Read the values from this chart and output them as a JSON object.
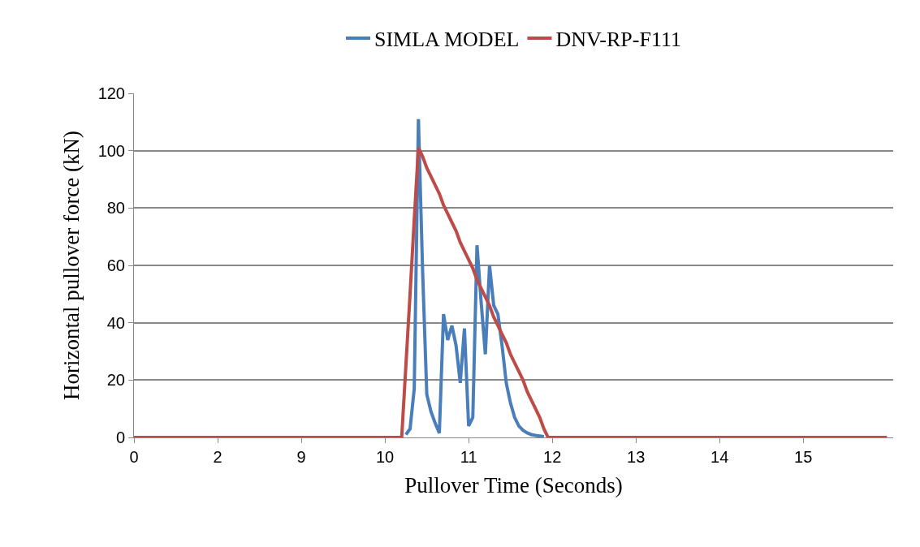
{
  "chart_data": {
    "type": "line",
    "xlabel": "Pullover Time (Seconds)",
    "ylabel": "Horizontal pullover force (kN)",
    "categories": [
      "0",
      null,
      null,
      null,
      null,
      null,
      null,
      null,
      null,
      null,
      null,
      null,
      null,
      null,
      null,
      null,
      null,
      null,
      null,
      null,
      "2",
      null,
      null,
      null,
      null,
      null,
      null,
      null,
      null,
      null,
      null,
      null,
      null,
      null,
      null,
      null,
      null,
      null,
      null,
      null,
      "9",
      null,
      null,
      null,
      null,
      null,
      null,
      null,
      null,
      null,
      null,
      null,
      null,
      null,
      null,
      null,
      null,
      null,
      null,
      null,
      "10",
      null,
      null,
      null,
      null,
      null,
      null,
      null,
      null,
      null,
      null,
      null,
      null,
      null,
      null,
      null,
      null,
      null,
      null,
      null,
      "11",
      null,
      null,
      null,
      null,
      null,
      null,
      null,
      null,
      null,
      null,
      null,
      null,
      null,
      null,
      null,
      null,
      null,
      null,
      null,
      "12",
      null,
      null,
      null,
      null,
      null,
      null,
      null,
      null,
      null,
      null,
      null,
      null,
      null,
      null,
      null,
      null,
      null,
      null,
      null,
      "13",
      null,
      null,
      null,
      null,
      null,
      null,
      null,
      null,
      null,
      null,
      null,
      null,
      null,
      null,
      null,
      null,
      null,
      null,
      null,
      "14",
      null,
      null,
      null,
      null,
      null,
      null,
      null,
      null,
      null,
      null,
      null,
      null,
      null,
      null,
      null,
      null,
      null,
      null,
      null,
      "15",
      null,
      null,
      null,
      null,
      null,
      null,
      null,
      null,
      null,
      null,
      null,
      null,
      null,
      null,
      null,
      null,
      null,
      null,
      null,
      null
    ],
    "series": [
      {
        "name": "SIMLA MODEL",
        "color": "#4a7ebb",
        "values": [
          null,
          null,
          null,
          null,
          null,
          null,
          null,
          null,
          null,
          null,
          null,
          null,
          null,
          null,
          null,
          null,
          null,
          null,
          null,
          null,
          null,
          null,
          null,
          null,
          null,
          null,
          null,
          null,
          null,
          null,
          null,
          null,
          null,
          null,
          null,
          null,
          null,
          null,
          null,
          null,
          null,
          null,
          null,
          null,
          null,
          null,
          null,
          null,
          null,
          null,
          null,
          null,
          null,
          null,
          null,
          null,
          null,
          null,
          null,
          null,
          null,
          null,
          null,
          null,
          null,
          1,
          3,
          17,
          111,
          58,
          15,
          9,
          5,
          1.5,
          43,
          34,
          39,
          32,
          19,
          38,
          4,
          7,
          67,
          47,
          29,
          60,
          46,
          43,
          32,
          19,
          12,
          7,
          4,
          2.5,
          1.6,
          1,
          0.7,
          0.5,
          0.3,
          null,
          null,
          null,
          null,
          null,
          null,
          null,
          null,
          null,
          null,
          null,
          null,
          null,
          null,
          null,
          null,
          null,
          null,
          null,
          null,
          null,
          null,
          null,
          null,
          null,
          null,
          null,
          null,
          null,
          null,
          null,
          null,
          null,
          null,
          null,
          null,
          null,
          null,
          null,
          null,
          null,
          null,
          null,
          null,
          null,
          null,
          null,
          null,
          null,
          null,
          null,
          null,
          null,
          null,
          null,
          null,
          null,
          null,
          null,
          null,
          null,
          null,
          null,
          null,
          null,
          null,
          null,
          null,
          null,
          null,
          null,
          null,
          null,
          null,
          null,
          null,
          null,
          null,
          null,
          null,
          null,
          null
        ]
      },
      {
        "name": "DNV-RP-F111",
        "color": "#be4b48",
        "values": [
          0,
          0,
          0,
          0,
          0,
          0,
          0,
          0,
          0,
          0,
          0,
          0,
          0,
          0,
          0,
          0,
          0,
          0,
          0,
          0,
          0,
          0,
          0,
          0,
          0,
          0,
          0,
          0,
          0,
          0,
          0,
          0,
          0,
          0,
          0,
          0,
          0,
          0,
          0,
          0,
          0,
          0,
          0,
          0,
          0,
          0,
          0,
          0,
          0,
          0,
          0,
          0,
          0,
          0,
          0,
          0,
          0,
          0,
          0,
          0,
          0,
          0,
          0,
          0,
          0,
          25,
          50,
          76,
          101,
          98,
          94,
          91,
          88,
          85,
          81,
          78,
          75,
          72,
          68,
          65,
          62,
          59,
          55,
          52,
          49,
          46,
          42,
          39,
          36,
          33,
          29,
          26,
          23,
          20,
          16,
          13,
          10,
          7,
          3,
          0,
          0,
          0,
          0,
          0,
          0,
          0,
          0,
          0,
          0,
          0,
          0,
          0,
          0,
          0,
          0,
          0,
          0,
          0,
          0,
          0,
          0,
          0,
          0,
          0,
          0,
          0,
          0,
          0,
          0,
          0,
          0,
          0,
          0,
          0,
          0,
          0,
          0,
          0,
          0,
          0,
          0,
          0,
          0,
          0,
          0,
          0,
          0,
          0,
          0,
          0,
          0,
          0,
          0,
          0,
          0,
          0,
          0,
          0,
          0,
          0,
          0,
          0,
          0,
          0,
          0,
          0,
          0,
          0,
          0,
          0,
          0,
          0,
          0,
          0,
          0,
          0,
          0,
          0,
          0,
          0,
          0
        ]
      }
    ],
    "ylim": [
      0,
      120
    ],
    "yticks": [
      0,
      20,
      40,
      60,
      80,
      100,
      120
    ],
    "grid": "y",
    "legend": "top",
    "marker": "none",
    "line_style": "solid"
  }
}
